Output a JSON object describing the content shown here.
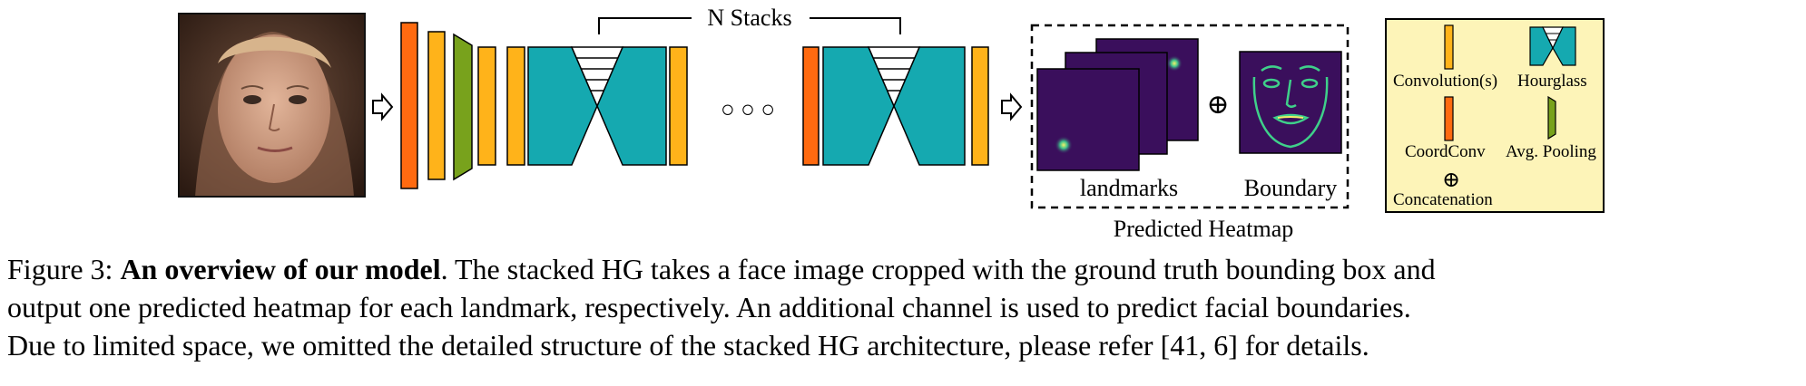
{
  "figure": {
    "stack_label": "N Stacks",
    "landmarks_label": "landmarks",
    "boundary_label": "Boundary",
    "predicted_label": "Predicted Heatmap",
    "dots": "○ ○ ○",
    "concat_symbol": "⊕",
    "legend": {
      "convolution": "Convolution(s)",
      "hourglass": "Hourglass",
      "coordconv": "CoordConv",
      "pooling": "Avg. Pooling",
      "concat_symbol": "⊕",
      "concatenation": "Concatenation"
    },
    "colors": {
      "coordconv": "#ff6a10",
      "conv": "#ffb31a",
      "pooling": "#78a21c",
      "hourglass": "#15a9b0",
      "legend_bg": "#fdf4b8",
      "heatmap_bg": "#3a0f5c"
    }
  },
  "caption": {
    "label": "Figure 3: ",
    "bold": "An overview of our model",
    "line1_rest": ". The stacked HG takes a face image cropped with the ground truth bounding box and",
    "line2": "output one predicted heatmap for each landmark, respectively. An additional channel is used to predict facial boundaries.",
    "line3": "Due to limited space, we omitted the detailed structure of the stacked HG architecture, please refer  [41, 6] for details."
  }
}
